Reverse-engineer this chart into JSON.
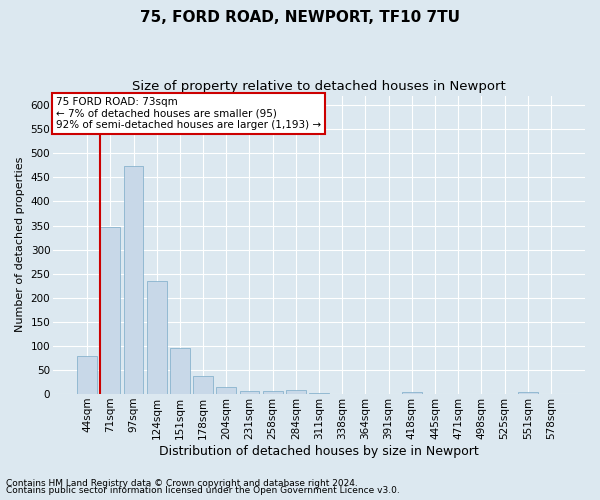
{
  "title": "75, FORD ROAD, NEWPORT, TF10 7TU",
  "subtitle": "Size of property relative to detached houses in Newport",
  "xlabel": "Distribution of detached houses by size in Newport",
  "ylabel": "Number of detached properties",
  "categories": [
    "44sqm",
    "71sqm",
    "97sqm",
    "124sqm",
    "151sqm",
    "178sqm",
    "204sqm",
    "231sqm",
    "258sqm",
    "284sqm",
    "311sqm",
    "338sqm",
    "364sqm",
    "391sqm",
    "418sqm",
    "445sqm",
    "471sqm",
    "498sqm",
    "525sqm",
    "551sqm",
    "578sqm"
  ],
  "values": [
    80,
    348,
    473,
    235,
    96,
    37,
    15,
    7,
    7,
    8,
    2,
    0,
    0,
    0,
    5,
    0,
    0,
    0,
    0,
    5,
    0
  ],
  "bar_color": "#c8d8e8",
  "bar_edge_color": "#7aaac8",
  "highlight_line_index": 1,
  "highlight_color": "#cc0000",
  "annotation_text": "75 FORD ROAD: 73sqm\n← 7% of detached houses are smaller (95)\n92% of semi-detached houses are larger (1,193) →",
  "annotation_box_facecolor": "#ffffff",
  "annotation_box_edgecolor": "#cc0000",
  "ylim": [
    0,
    620
  ],
  "yticks": [
    0,
    50,
    100,
    150,
    200,
    250,
    300,
    350,
    400,
    450,
    500,
    550,
    600
  ],
  "background_color": "#dce8f0",
  "grid_color": "#ffffff",
  "title_fontsize": 11,
  "subtitle_fontsize": 9.5,
  "xlabel_fontsize": 9,
  "ylabel_fontsize": 8,
  "tick_fontsize": 7.5,
  "annotation_fontsize": 7.5,
  "footer_fontsize": 6.5,
  "footer1": "Contains HM Land Registry data © Crown copyright and database right 2024.",
  "footer2": "Contains public sector information licensed under the Open Government Licence v3.0."
}
